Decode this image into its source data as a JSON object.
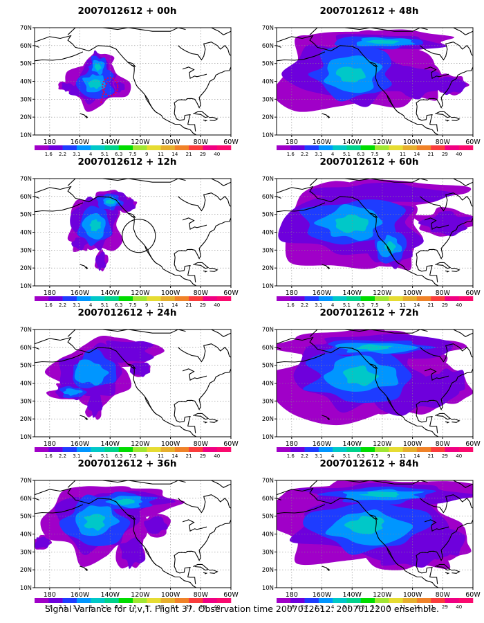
{
  "figure": {
    "caption": "Signal Variance for u,v,T. Flight 37. Observation time 2007012612. 2007012200 ensemble."
  },
  "axes": {
    "lat_labels": [
      "70N",
      "60N",
      "50N",
      "40N",
      "30N",
      "20N",
      "10N"
    ],
    "lon_labels": [
      "180",
      "160W",
      "140W",
      "120W",
      "100W",
      "80W",
      "60W"
    ]
  },
  "colorbar": {
    "labels": [
      "1.6",
      "2.2",
      "3.1",
      "4",
      "5.1",
      "6.3",
      "7.5",
      "9",
      "11",
      "14",
      "21",
      "29",
      "40"
    ],
    "colors": [
      "#a000c8",
      "#6e00dc",
      "#1e3cff",
      "#0096ff",
      "#00c8c8",
      "#00d28c",
      "#00dc00",
      "#a0e632",
      "#e6dc32",
      "#e6af2d",
      "#f08228",
      "#fa3c3c",
      "#f00082"
    ]
  },
  "chart_data": [
    {
      "type": "heatmap",
      "title": "2007012612 + 00h",
      "lead_hours": 0,
      "variable": "signal variance (u,v,T)",
      "max_level_index": 4,
      "observation_marker": "red dashed circle"
    },
    {
      "type": "heatmap",
      "title": "2007012612 + 12h",
      "lead_hours": 12,
      "variable": "signal variance (u,v,T)",
      "max_level_index": 4,
      "observation_marker": "black circle"
    },
    {
      "type": "heatmap",
      "title": "2007012612 + 24h",
      "lead_hours": 24,
      "variable": "signal variance (u,v,T)",
      "max_level_index": 3
    },
    {
      "type": "heatmap",
      "title": "2007012612 + 36h",
      "lead_hours": 36,
      "variable": "signal variance (u,v,T)",
      "max_level_index": 4
    },
    {
      "type": "heatmap",
      "title": "2007012612 + 48h",
      "lead_hours": 48,
      "variable": "signal variance (u,v,T)",
      "max_level_index": 4
    },
    {
      "type": "heatmap",
      "title": "2007012612 + 60h",
      "lead_hours": 60,
      "variable": "signal variance (u,v,T)",
      "max_level_index": 4
    },
    {
      "type": "heatmap",
      "title": "2007012612 + 72h",
      "lead_hours": 72,
      "variable": "signal variance (u,v,T)",
      "max_level_index": 4
    },
    {
      "type": "heatmap",
      "title": "2007012612 + 84h",
      "lead_hours": 84,
      "variable": "signal variance (u,v,T)",
      "max_level_index": 4
    }
  ]
}
